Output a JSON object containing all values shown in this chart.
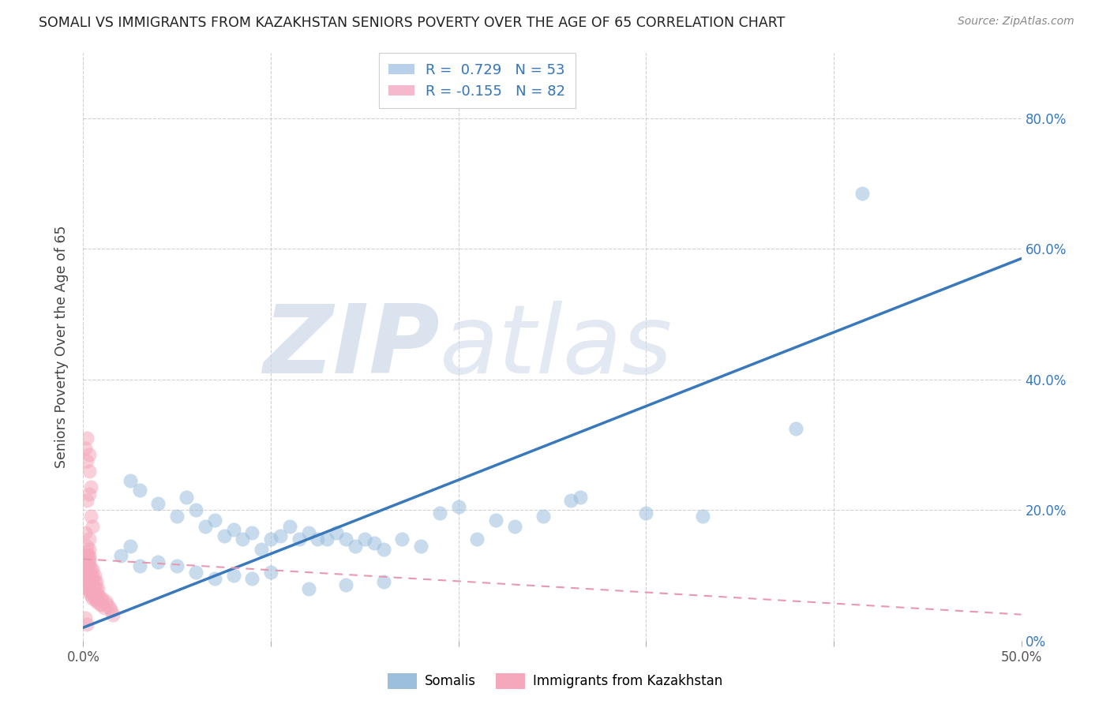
{
  "title": "SOMALI VS IMMIGRANTS FROM KAZAKHSTAN SENIORS POVERTY OVER THE AGE OF 65 CORRELATION CHART",
  "source": "Source: ZipAtlas.com",
  "ylabel": "Seniors Poverty Over the Age of 65",
  "xlim": [
    0.0,
    0.5
  ],
  "ylim": [
    0.0,
    0.9
  ],
  "xtick_vals": [
    0.0,
    0.1,
    0.2,
    0.3,
    0.4,
    0.5
  ],
  "xtick_labels": [
    "0.0%",
    "",
    "",
    "",
    "",
    "50.0%"
  ],
  "ytick_vals": [
    0.0,
    0.2,
    0.4,
    0.6,
    0.8
  ],
  "ytick_labels_right": [
    "0%",
    "20.0%",
    "40.0%",
    "60.0%",
    "80.0%"
  ],
  "somali_color": "#9bbfdd",
  "kazakhstan_color": "#f5a8bc",
  "trend_somali_color": "#3878bb",
  "trend_kaz_color": "#e898b0",
  "watermark_color": "#ccd8e8",
  "grid_color": "#c8c8c8",
  "background_color": "#ffffff",
  "legend_top_R1": "R =  0.729   N = 53",
  "legend_top_R2": "R = -0.155   N = 82",
  "legend_color": "#3878bb",
  "legend_bottom_1": "Somalis",
  "legend_bottom_2": "Immigrants from Kazakhstan",
  "trend_somali_x0": 0.0,
  "trend_somali_y0": 0.02,
  "trend_somali_x1": 0.5,
  "trend_somali_y1": 0.585,
  "trend_kaz_x0": 0.0,
  "trend_kaz_y0": 0.125,
  "trend_kaz_x1": 0.5,
  "trend_kaz_y1": 0.04,
  "somali_scatter_x": [
    0.025,
    0.03,
    0.04,
    0.05,
    0.055,
    0.06,
    0.065,
    0.07,
    0.075,
    0.08,
    0.085,
    0.09,
    0.095,
    0.1,
    0.105,
    0.11,
    0.115,
    0.12,
    0.125,
    0.13,
    0.135,
    0.14,
    0.145,
    0.15,
    0.155,
    0.16,
    0.17,
    0.18,
    0.19,
    0.2,
    0.21,
    0.22,
    0.23,
    0.245,
    0.26,
    0.265,
    0.3,
    0.33,
    0.38,
    0.415,
    0.02,
    0.025,
    0.03,
    0.04,
    0.05,
    0.06,
    0.07,
    0.08,
    0.09,
    0.1,
    0.12,
    0.14,
    0.16
  ],
  "somali_scatter_y": [
    0.245,
    0.23,
    0.21,
    0.19,
    0.22,
    0.2,
    0.175,
    0.185,
    0.16,
    0.17,
    0.155,
    0.165,
    0.14,
    0.155,
    0.16,
    0.175,
    0.155,
    0.165,
    0.155,
    0.155,
    0.165,
    0.155,
    0.145,
    0.155,
    0.15,
    0.14,
    0.155,
    0.145,
    0.195,
    0.205,
    0.155,
    0.185,
    0.175,
    0.19,
    0.215,
    0.22,
    0.195,
    0.19,
    0.325,
    0.685,
    0.13,
    0.145,
    0.115,
    0.12,
    0.115,
    0.105,
    0.095,
    0.1,
    0.095,
    0.105,
    0.08,
    0.085,
    0.09
  ],
  "kaz_scatter_x": [
    0.001,
    0.001,
    0.001,
    0.001,
    0.001,
    0.001,
    0.001,
    0.001,
    0.001,
    0.002,
    0.002,
    0.002,
    0.002,
    0.002,
    0.002,
    0.002,
    0.002,
    0.002,
    0.002,
    0.003,
    0.003,
    0.003,
    0.003,
    0.003,
    0.003,
    0.003,
    0.003,
    0.003,
    0.003,
    0.004,
    0.004,
    0.004,
    0.004,
    0.004,
    0.004,
    0.004,
    0.005,
    0.005,
    0.005,
    0.005,
    0.005,
    0.005,
    0.006,
    0.006,
    0.006,
    0.006,
    0.006,
    0.007,
    0.007,
    0.007,
    0.007,
    0.008,
    0.008,
    0.008,
    0.009,
    0.009,
    0.01,
    0.01,
    0.011,
    0.012,
    0.013,
    0.014,
    0.015,
    0.016,
    0.002,
    0.003,
    0.004,
    0.003,
    0.002,
    0.001,
    0.001,
    0.002,
    0.003,
    0.004,
    0.005,
    0.003,
    0.002,
    0.003,
    0.002,
    0.002,
    0.001,
    0.002
  ],
  "kaz_scatter_y": [
    0.085,
    0.095,
    0.105,
    0.11,
    0.115,
    0.12,
    0.125,
    0.13,
    0.09,
    0.08,
    0.085,
    0.09,
    0.095,
    0.1,
    0.105,
    0.115,
    0.12,
    0.125,
    0.13,
    0.075,
    0.08,
    0.085,
    0.09,
    0.1,
    0.105,
    0.115,
    0.12,
    0.125,
    0.13,
    0.07,
    0.08,
    0.085,
    0.09,
    0.095,
    0.1,
    0.11,
    0.065,
    0.075,
    0.085,
    0.09,
    0.1,
    0.11,
    0.065,
    0.07,
    0.08,
    0.09,
    0.1,
    0.06,
    0.07,
    0.08,
    0.09,
    0.06,
    0.07,
    0.08,
    0.055,
    0.065,
    0.055,
    0.065,
    0.05,
    0.06,
    0.055,
    0.05,
    0.045,
    0.04,
    0.215,
    0.225,
    0.235,
    0.26,
    0.275,
    0.165,
    0.295,
    0.31,
    0.285,
    0.19,
    0.175,
    0.155,
    0.145,
    0.14,
    0.135,
    0.13,
    0.035,
    0.025
  ]
}
